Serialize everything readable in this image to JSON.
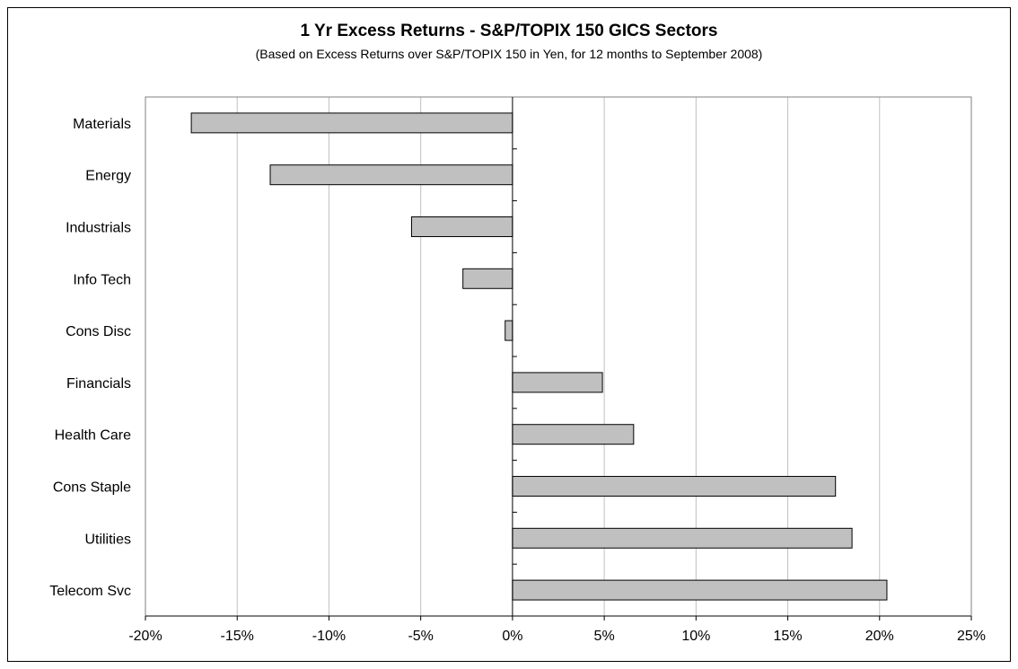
{
  "chart_data": {
    "type": "bar",
    "orientation": "horizontal",
    "title": "1 Yr Excess Returns - S&P/TOPIX 150 GICS Sectors",
    "subtitle": "(Based on Excess Returns over S&P/TOPIX 150 in Yen, for 12 months to September 2008)",
    "xlabel": "",
    "ylabel": "",
    "categories": [
      "Materials",
      "Energy",
      "Industrials",
      "Info Tech",
      "Cons Disc",
      "Financials",
      "Health Care",
      "Cons Staple",
      "Utilities",
      "Telecom Svc"
    ],
    "values": [
      -17.5,
      -13.2,
      -5.5,
      -2.7,
      -0.4,
      4.9,
      6.6,
      17.6,
      18.5,
      20.4
    ],
    "xlim": [
      -20,
      25
    ],
    "ticks": [
      -20,
      -15,
      -10,
      -5,
      0,
      5,
      10,
      15,
      20,
      25
    ],
    "tick_labels": [
      "-20%",
      "-15%",
      "-10%",
      "-5%",
      "0%",
      "5%",
      "10%",
      "15%",
      "20%",
      "25%"
    ],
    "grid": "vertical",
    "legend": "none",
    "colors": {
      "bar_fill": "#c0c0c0",
      "bar_stroke": "#000000",
      "grid": "#c0c0c0",
      "axis": "#000000",
      "plot_border": "#808080"
    }
  }
}
